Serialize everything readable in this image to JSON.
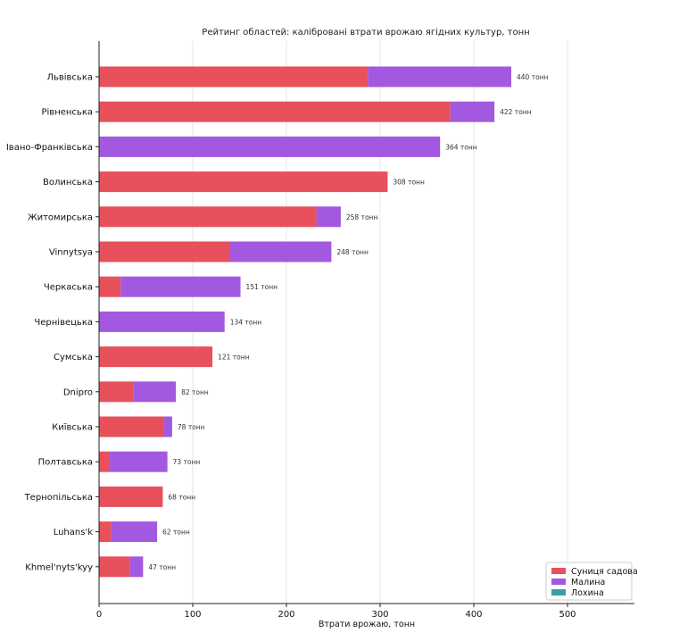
{
  "chart_data": {
    "type": "bar",
    "orientation": "horizontal",
    "stacked": true,
    "title": "Рейтинг областей: калібровані втрати врожаю ягідних культур, тонн",
    "xlabel": "Втрати врожаю, тонн",
    "ylabel": "",
    "xlim": [
      0,
      570
    ],
    "xticks": [
      0,
      100,
      200,
      300,
      400,
      500
    ],
    "grid": "vertical",
    "legend_position": "bottom-right",
    "categories": [
      "Львівська",
      "Рівненська",
      "Івано-Франківська",
      "Волинська",
      "Житомирська",
      "Vinnytsya",
      "Черкаська",
      "Чернівецька",
      "Сумська",
      "Dnipro",
      "Київська",
      "Полтавська",
      "Тернопільська",
      "Luhans'k",
      "Khmel'nyts'kyy"
    ],
    "series": [
      {
        "name": "Суниця садова",
        "color": "#e8505b",
        "values": [
          287,
          375,
          0,
          308,
          232,
          140,
          23,
          0,
          121,
          37,
          69,
          11,
          68,
          13,
          33
        ]
      },
      {
        "name": "Малина",
        "color": "#a259e0",
        "values": [
          153,
          47,
          364,
          0,
          26,
          108,
          128,
          134,
          0,
          45,
          9,
          62,
          0,
          49,
          14
        ]
      },
      {
        "name": "Лохина",
        "color": "#3a9fa0",
        "values": [
          0,
          0,
          0,
          0,
          0,
          0,
          0,
          0,
          0,
          0,
          0,
          0,
          0,
          0,
          0
        ]
      }
    ],
    "totals": [
      440,
      422,
      364,
      308,
      258,
      248,
      151,
      134,
      121,
      82,
      78,
      73,
      68,
      62,
      47
    ],
    "total_labels": [
      "440 тонн",
      "422 тонн",
      "364 тонн",
      "308 тонн",
      "258 тонн",
      "248 тонн",
      "151 тонн",
      "134 тонн",
      "121 тонн",
      "82 тонн",
      "78 тонн",
      "73 тонн",
      "68 тонн",
      "62 тонн",
      "47 тонн"
    ]
  }
}
